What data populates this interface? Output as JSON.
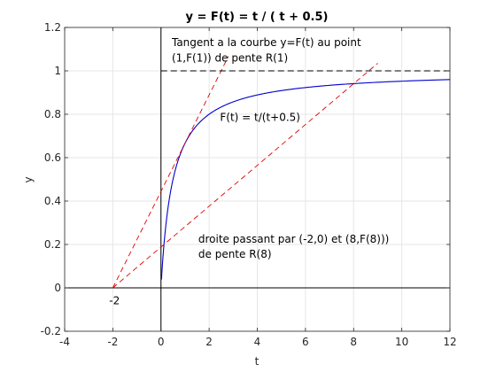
{
  "chart_data": {
    "type": "line",
    "title": "y = F(t) = t / ( t + 0.5)",
    "xlabel": "t",
    "ylabel": "y",
    "xlim": [
      -4,
      12
    ],
    "ylim": [
      -0.2,
      1.2
    ],
    "xticks": [
      -4,
      -2,
      0,
      2,
      4,
      6,
      8,
      10,
      12
    ],
    "yticks": [
      -0.2,
      0,
      0.2,
      0.4,
      0.6,
      0.8,
      1,
      1.2
    ],
    "grid": true,
    "legend": "none",
    "colors": {
      "curve": "#0000cc",
      "tangent": "#e00000",
      "asymptote": "#000000",
      "axes": "#000000",
      "grid": "#e6e6e6"
    },
    "series": [
      {
        "kind": "curve",
        "style": "solid",
        "x": [
          0.02,
          0.05,
          0.1,
          0.2,
          0.3,
          0.4,
          0.5,
          0.7,
          1,
          1.5,
          2,
          3,
          4,
          5,
          6,
          7,
          8,
          9,
          10,
          11,
          12
        ],
        "values": [
          0.038,
          0.091,
          0.167,
          0.286,
          0.375,
          0.444,
          0.5,
          0.583,
          0.667,
          0.75,
          0.8,
          0.857,
          0.889,
          0.909,
          0.923,
          0.933,
          0.941,
          0.947,
          0.952,
          0.957,
          0.96
        ]
      },
      {
        "kind": "tangent",
        "style": "dashed",
        "x": [
          -2,
          2.8
        ],
        "values": [
          0,
          1.067
        ]
      },
      {
        "kind": "secant",
        "style": "dashed",
        "x": [
          -2,
          9
        ],
        "values": [
          0,
          1.035
        ]
      },
      {
        "kind": "asymptote",
        "style": "dashed",
        "x": [
          0,
          12
        ],
        "values": [
          1,
          1
        ]
      }
    ],
    "annotations": [
      {
        "text": "Tangent a la courbe y=F(t) au point",
        "x": 0.45,
        "y": 1.13
      },
      {
        "text": "(1,F(1)) de pente R(1)",
        "x": 0.45,
        "y": 1.06
      },
      {
        "text": "F(t) = t/(t+0.5)",
        "x": 2.45,
        "y": 0.785
      },
      {
        "text": "droite passant par (-2,0) et (8,F(8)))",
        "x": 1.55,
        "y": 0.225
      },
      {
        "text": "de pente R(8)",
        "x": 1.55,
        "y": 0.155
      },
      {
        "text": "-2",
        "x": -2.15,
        "y": -0.06
      }
    ]
  }
}
